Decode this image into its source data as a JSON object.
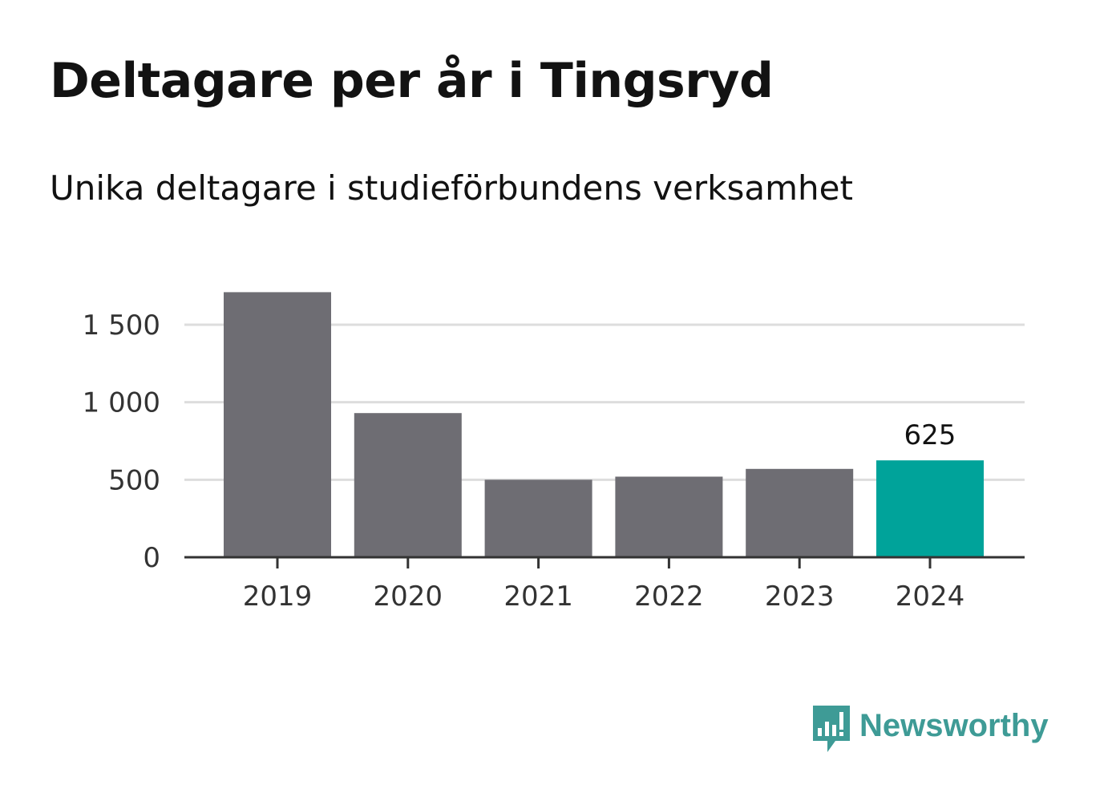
{
  "header": {
    "title": "Deltagare per år i Tingsryd",
    "subtitle": "Unika deltagare i studieförbundens verksamhet"
  },
  "brand": {
    "name": "Newsworthy",
    "icon": "newsworthy-logo-icon",
    "color": "#3e9b96"
  },
  "chart_data": {
    "type": "bar",
    "title": "Deltagare per år i Tingsryd",
    "subtitle": "Unika deltagare i studieförbundens verksamhet",
    "categories": [
      "2019",
      "2020",
      "2021",
      "2022",
      "2023",
      "2024"
    ],
    "values": [
      1710,
      930,
      500,
      520,
      570,
      625
    ],
    "ylim": [
      0,
      1700
    ],
    "yticks": [
      0,
      500,
      1000,
      1500
    ],
    "ytick_labels": [
      "0",
      "500",
      "1 000",
      "1 500"
    ],
    "grid": true,
    "highlight_index": 5,
    "data_labels": [
      {
        "index": 5,
        "text": "625"
      }
    ],
    "colors": {
      "bar": "#6e6d73",
      "highlight": "#00a39a",
      "grid": "#dddddd",
      "axis": "#333333",
      "tick_text": "#333333"
    }
  }
}
